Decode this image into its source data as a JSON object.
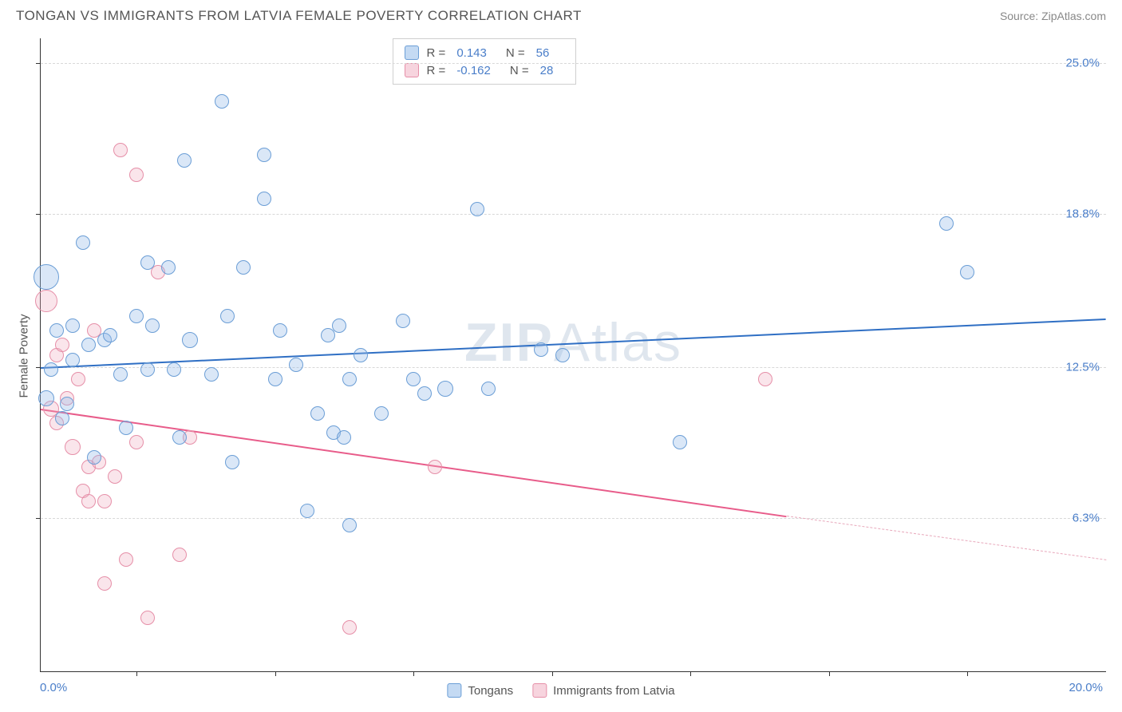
{
  "header": {
    "title": "TONGAN VS IMMIGRANTS FROM LATVIA FEMALE POVERTY CORRELATION CHART",
    "source": "Source: ZipAtlas.com"
  },
  "watermark": "ZIPAtlas",
  "chart": {
    "type": "scatter",
    "background_color": "#ffffff",
    "grid_color": "#d8d8d8",
    "axis_color": "#333333",
    "xlim": [
      0,
      20
    ],
    "ylim": [
      0,
      26
    ],
    "x_axis": {
      "min_label": "0.0%",
      "max_label": "20.0%",
      "tick_positions_pct": [
        9,
        22,
        35,
        48,
        61,
        74,
        87
      ]
    },
    "y_axis": {
      "title": "Female Poverty",
      "ticks": [
        {
          "value": 6.3,
          "label": "6.3%"
        },
        {
          "value": 12.5,
          "label": "12.5%"
        },
        {
          "value": 18.8,
          "label": "18.8%"
        },
        {
          "value": 25.0,
          "label": "25.0%"
        }
      ],
      "label_color": "#4a7ec9",
      "label_fontsize": 15
    },
    "legend_stats": [
      {
        "swatch": "blue",
        "r_label": "R =",
        "r_value": "0.143",
        "n_label": "N =",
        "n_value": "56"
      },
      {
        "swatch": "pink",
        "r_label": "R =",
        "r_value": "-0.162",
        "n_label": "N =",
        "n_value": "28"
      }
    ],
    "legend_bottom": [
      {
        "swatch": "blue",
        "label": "Tongans"
      },
      {
        "swatch": "pink",
        "label": "Immigrants from Latvia"
      }
    ],
    "series_a": {
      "name": "Tongans",
      "fill": "rgba(148,187,233,0.35)",
      "stroke": "#6b9ed6",
      "trend_color": "#2f6fc4",
      "trend": {
        "x1": 0,
        "y1": 12.5,
        "x2": 20,
        "y2": 14.5
      },
      "points": [
        {
          "x": 0.1,
          "y": 16.2,
          "r": 16
        },
        {
          "x": 0.1,
          "y": 11.2,
          "r": 10
        },
        {
          "x": 0.2,
          "y": 12.4,
          "r": 9
        },
        {
          "x": 0.3,
          "y": 14.0,
          "r": 9
        },
        {
          "x": 0.4,
          "y": 10.4,
          "r": 9
        },
        {
          "x": 0.5,
          "y": 11.0,
          "r": 9
        },
        {
          "x": 0.6,
          "y": 12.8,
          "r": 9
        },
        {
          "x": 0.6,
          "y": 14.2,
          "r": 9
        },
        {
          "x": 0.8,
          "y": 17.6,
          "r": 9
        },
        {
          "x": 0.9,
          "y": 13.4,
          "r": 9
        },
        {
          "x": 1.0,
          "y": 8.8,
          "r": 9
        },
        {
          "x": 1.2,
          "y": 13.6,
          "r": 9
        },
        {
          "x": 1.3,
          "y": 13.8,
          "r": 9
        },
        {
          "x": 1.5,
          "y": 12.2,
          "r": 9
        },
        {
          "x": 1.6,
          "y": 10.0,
          "r": 9
        },
        {
          "x": 1.8,
          "y": 14.6,
          "r": 9
        },
        {
          "x": 2.0,
          "y": 16.8,
          "r": 9
        },
        {
          "x": 2.0,
          "y": 12.4,
          "r": 9
        },
        {
          "x": 2.1,
          "y": 14.2,
          "r": 9
        },
        {
          "x": 2.4,
          "y": 16.6,
          "r": 9
        },
        {
          "x": 2.5,
          "y": 12.4,
          "r": 9
        },
        {
          "x": 2.6,
          "y": 9.6,
          "r": 9
        },
        {
          "x": 2.7,
          "y": 21.0,
          "r": 9
        },
        {
          "x": 2.8,
          "y": 13.6,
          "r": 10
        },
        {
          "x": 3.2,
          "y": 12.2,
          "r": 9
        },
        {
          "x": 3.4,
          "y": 23.4,
          "r": 9
        },
        {
          "x": 3.5,
          "y": 14.6,
          "r": 9
        },
        {
          "x": 3.6,
          "y": 8.6,
          "r": 9
        },
        {
          "x": 3.8,
          "y": 16.6,
          "r": 9
        },
        {
          "x": 4.2,
          "y": 19.4,
          "r": 9
        },
        {
          "x": 4.2,
          "y": 21.2,
          "r": 9
        },
        {
          "x": 4.4,
          "y": 12.0,
          "r": 9
        },
        {
          "x": 4.5,
          "y": 14.0,
          "r": 9
        },
        {
          "x": 4.8,
          "y": 12.6,
          "r": 9
        },
        {
          "x": 5.0,
          "y": 6.6,
          "r": 9
        },
        {
          "x": 5.2,
          "y": 10.6,
          "r": 9
        },
        {
          "x": 5.4,
          "y": 13.8,
          "r": 9
        },
        {
          "x": 5.5,
          "y": 9.8,
          "r": 9
        },
        {
          "x": 5.6,
          "y": 14.2,
          "r": 9
        },
        {
          "x": 5.7,
          "y": 9.6,
          "r": 9
        },
        {
          "x": 5.8,
          "y": 12.0,
          "r": 9
        },
        {
          "x": 5.8,
          "y": 6.0,
          "r": 9
        },
        {
          "x": 6.0,
          "y": 13.0,
          "r": 9
        },
        {
          "x": 6.4,
          "y": 10.6,
          "r": 9
        },
        {
          "x": 6.8,
          "y": 14.4,
          "r": 9
        },
        {
          "x": 7.0,
          "y": 12.0,
          "r": 9
        },
        {
          "x": 7.2,
          "y": 11.4,
          "r": 9
        },
        {
          "x": 7.6,
          "y": 11.6,
          "r": 10
        },
        {
          "x": 8.2,
          "y": 19.0,
          "r": 9
        },
        {
          "x": 8.4,
          "y": 11.6,
          "r": 9
        },
        {
          "x": 9.4,
          "y": 13.2,
          "r": 9
        },
        {
          "x": 9.8,
          "y": 13.0,
          "r": 9
        },
        {
          "x": 12.0,
          "y": 9.4,
          "r": 9
        },
        {
          "x": 17.0,
          "y": 18.4,
          "r": 9
        },
        {
          "x": 17.4,
          "y": 16.4,
          "r": 9
        }
      ]
    },
    "series_b": {
      "name": "Immigrants from Latvia",
      "fill": "rgba(240,170,190,0.3)",
      "stroke": "#e68fa8",
      "trend_color": "#e85c8a",
      "trend_solid": {
        "x1": 0,
        "y1": 10.8,
        "x2": 14,
        "y2": 6.4
      },
      "trend_dash": {
        "x1": 14,
        "y1": 6.4,
        "x2": 20,
        "y2": 4.6
      },
      "points": [
        {
          "x": 0.1,
          "y": 15.2,
          "r": 14
        },
        {
          "x": 0.2,
          "y": 10.8,
          "r": 10
        },
        {
          "x": 0.3,
          "y": 13.0,
          "r": 9
        },
        {
          "x": 0.3,
          "y": 10.2,
          "r": 9
        },
        {
          "x": 0.4,
          "y": 13.4,
          "r": 9
        },
        {
          "x": 0.5,
          "y": 11.2,
          "r": 9
        },
        {
          "x": 0.6,
          "y": 9.2,
          "r": 10
        },
        {
          "x": 0.7,
          "y": 12.0,
          "r": 9
        },
        {
          "x": 0.8,
          "y": 7.4,
          "r": 9
        },
        {
          "x": 0.9,
          "y": 8.4,
          "r": 9
        },
        {
          "x": 0.9,
          "y": 7.0,
          "r": 9
        },
        {
          "x": 1.0,
          "y": 14.0,
          "r": 9
        },
        {
          "x": 1.1,
          "y": 8.6,
          "r": 9
        },
        {
          "x": 1.2,
          "y": 7.0,
          "r": 9
        },
        {
          "x": 1.2,
          "y": 3.6,
          "r": 9
        },
        {
          "x": 1.4,
          "y": 8.0,
          "r": 9
        },
        {
          "x": 1.5,
          "y": 21.4,
          "r": 9
        },
        {
          "x": 1.6,
          "y": 4.6,
          "r": 9
        },
        {
          "x": 1.8,
          "y": 9.4,
          "r": 9
        },
        {
          "x": 1.8,
          "y": 20.4,
          "r": 9
        },
        {
          "x": 2.0,
          "y": 2.2,
          "r": 9
        },
        {
          "x": 2.2,
          "y": 16.4,
          "r": 9
        },
        {
          "x": 2.6,
          "y": 4.8,
          "r": 9
        },
        {
          "x": 2.8,
          "y": 9.6,
          "r": 9
        },
        {
          "x": 5.8,
          "y": 1.8,
          "r": 9
        },
        {
          "x": 7.4,
          "y": 8.4,
          "r": 9
        },
        {
          "x": 13.6,
          "y": 12.0,
          "r": 9
        }
      ]
    }
  }
}
